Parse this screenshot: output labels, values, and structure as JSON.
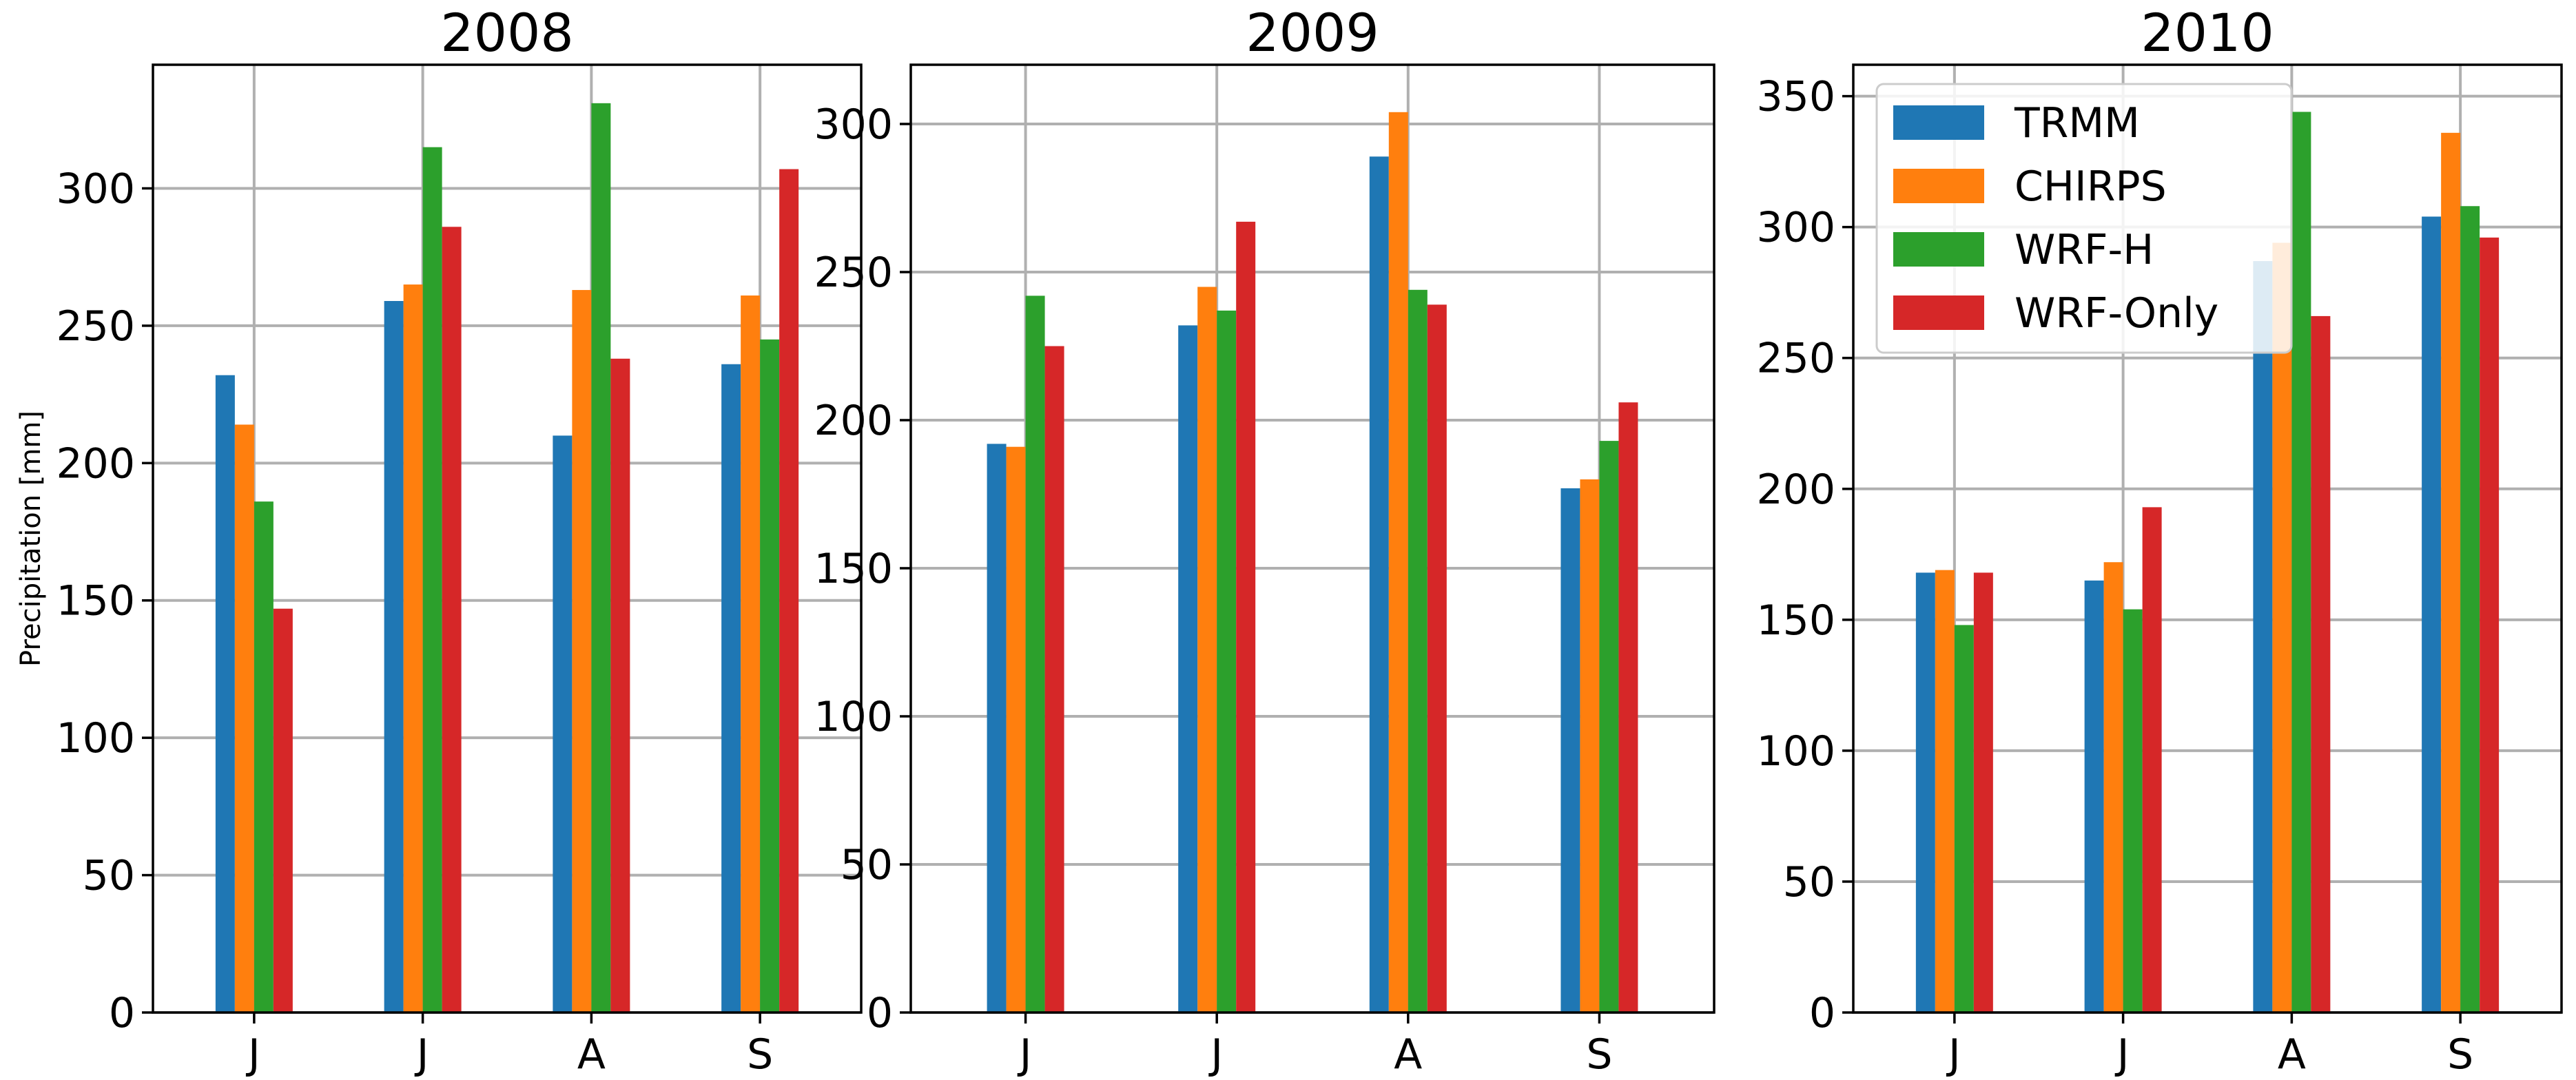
{
  "chart_data": [
    {
      "type": "bar",
      "title": "2008",
      "ylabel": "Precipitation [mm]",
      "xlabel": "",
      "categories": [
        "J",
        "J",
        "A",
        "S"
      ],
      "ylim": [
        0,
        345
      ],
      "yticks": [
        0,
        50,
        100,
        150,
        200,
        250,
        300
      ],
      "grid": true,
      "series": [
        {
          "name": "TRMM",
          "color": "#1f77b4",
          "values": [
            232,
            259,
            210,
            236
          ]
        },
        {
          "name": "CHIRPS",
          "color": "#ff7f0e",
          "values": [
            214,
            265,
            263,
            261
          ]
        },
        {
          "name": "WRF-H",
          "color": "#2ca02c",
          "values": [
            186,
            315,
            331,
            245
          ]
        },
        {
          "name": "WRF-Only",
          "color": "#d62728",
          "values": [
            147,
            286,
            238,
            307
          ]
        }
      ]
    },
    {
      "type": "bar",
      "title": "2009",
      "ylabel": "",
      "xlabel": "",
      "categories": [
        "J",
        "J",
        "A",
        "S"
      ],
      "ylim": [
        0,
        320
      ],
      "yticks": [
        0,
        50,
        100,
        150,
        200,
        250,
        300
      ],
      "grid": true,
      "series": [
        {
          "name": "TRMM",
          "color": "#1f77b4",
          "values": [
            192,
            232,
            289,
            177
          ]
        },
        {
          "name": "CHIRPS",
          "color": "#ff7f0e",
          "values": [
            191,
            245,
            304,
            180
          ]
        },
        {
          "name": "WRF-H",
          "color": "#2ca02c",
          "values": [
            242,
            237,
            244,
            193
          ]
        },
        {
          "name": "WRF-Only",
          "color": "#d62728",
          "values": [
            225,
            267,
            239,
            206
          ]
        }
      ]
    },
    {
      "type": "bar",
      "title": "2010",
      "ylabel": "",
      "xlabel": "",
      "categories": [
        "J",
        "J",
        "A",
        "S"
      ],
      "ylim": [
        0,
        362
      ],
      "yticks": [
        0,
        50,
        100,
        150,
        200,
        250,
        300,
        350
      ],
      "grid": true,
      "legend": "top-left",
      "series": [
        {
          "name": "TRMM",
          "color": "#1f77b4",
          "values": [
            168,
            165,
            287,
            304
          ]
        },
        {
          "name": "CHIRPS",
          "color": "#ff7f0e",
          "values": [
            169,
            172,
            294,
            336
          ]
        },
        {
          "name": "WRF-H",
          "color": "#2ca02c",
          "values": [
            148,
            154,
            344,
            308
          ]
        },
        {
          "name": "WRF-Only",
          "color": "#d62728",
          "values": [
            168,
            193,
            266,
            296
          ]
        }
      ]
    }
  ]
}
